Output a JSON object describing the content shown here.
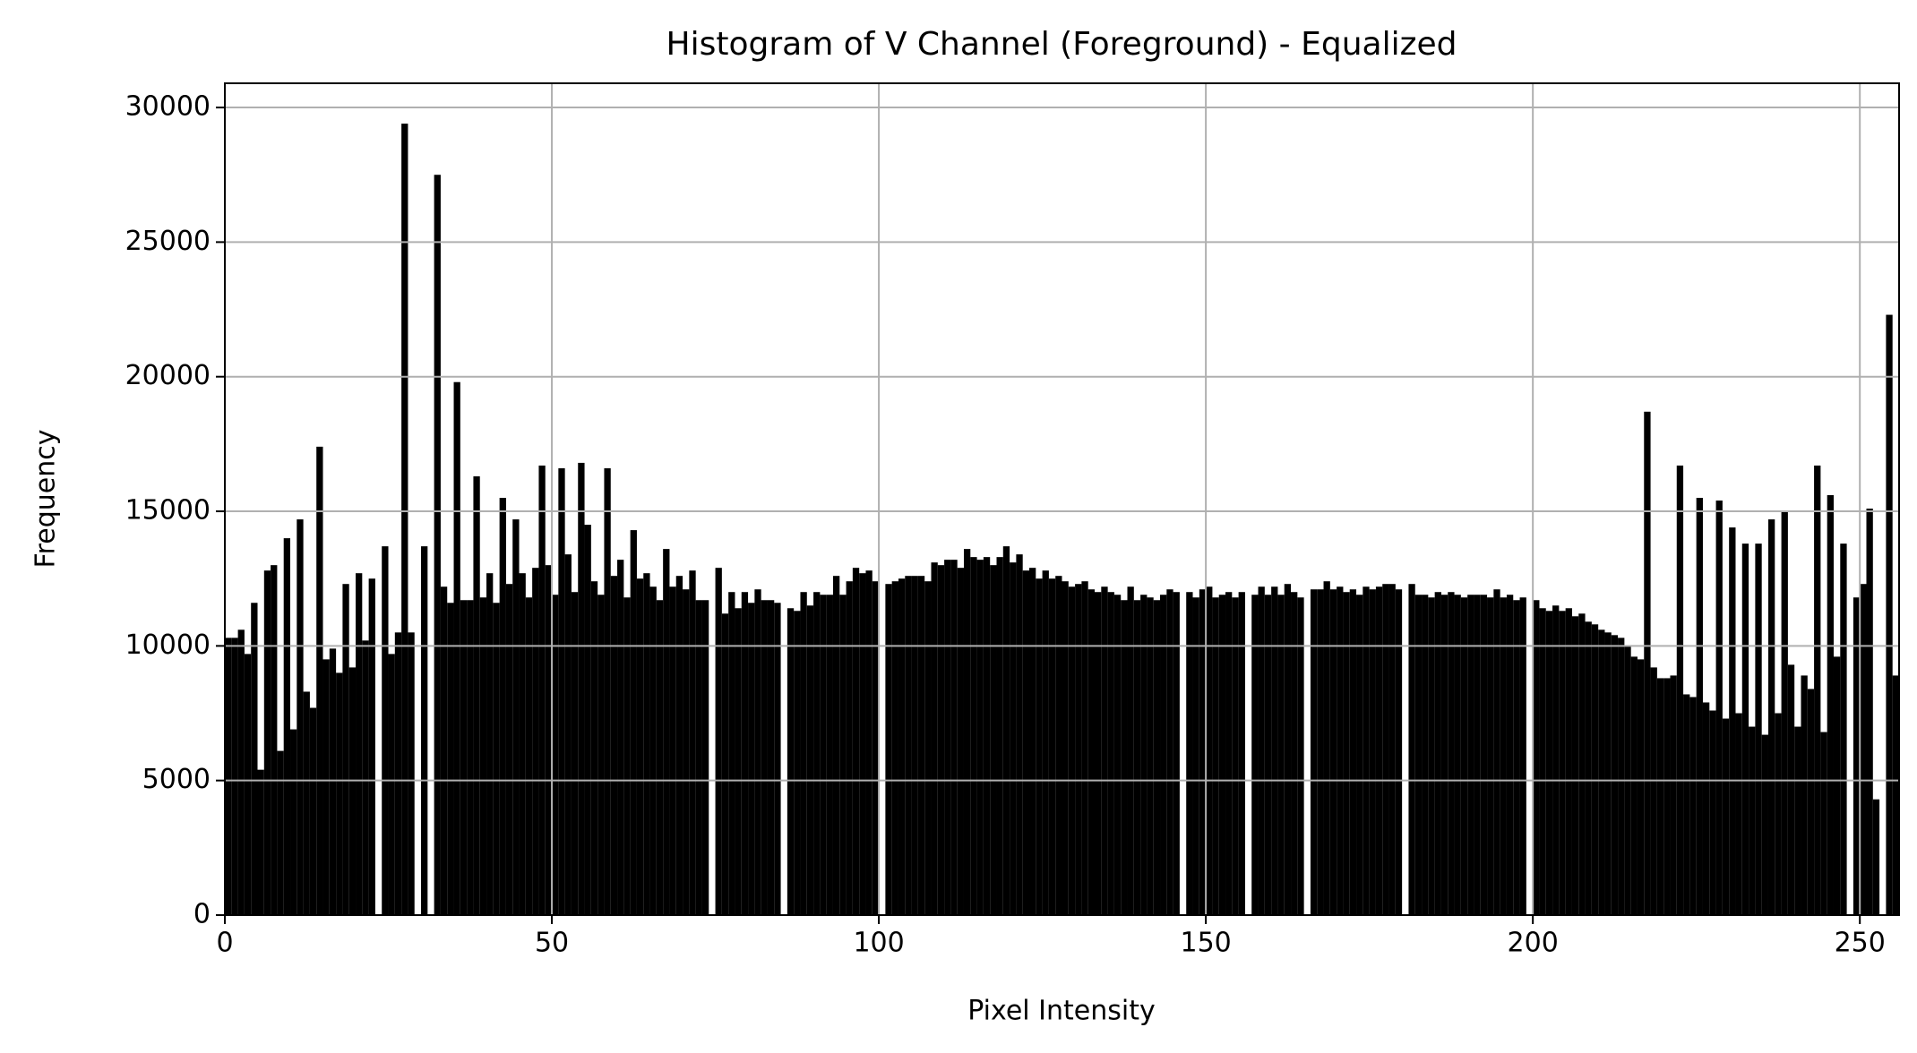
{
  "chart_data": {
    "type": "histogram",
    "title": "Histogram of V Channel (Foreground) - Equalized",
    "xlabel": "Pixel Intensity",
    "ylabel": "Frequency",
    "color": "#000000",
    "grid": true,
    "xlim": [
      0,
      256
    ],
    "ylim": [
      0,
      30900
    ],
    "xticks": [
      0,
      50,
      100,
      150,
      200,
      250
    ],
    "yticks": [
      0,
      5000,
      10000,
      15000,
      20000,
      25000,
      30000
    ],
    "bins": [
      0,
      1,
      2,
      3,
      4,
      5,
      6,
      7,
      8,
      9,
      10,
      11,
      12,
      13,
      14,
      15,
      16,
      17,
      18,
      19,
      20,
      21,
      22,
      23,
      24,
      25,
      26,
      27,
      28,
      29,
      30,
      31,
      32,
      33,
      34,
      35,
      36,
      37,
      38,
      39,
      40,
      41,
      42,
      43,
      44,
      45,
      46,
      47,
      48,
      49,
      50,
      51,
      52,
      53,
      54,
      55,
      56,
      57,
      58,
      59,
      60,
      61,
      62,
      63,
      64,
      65,
      66,
      67,
      68,
      69,
      70,
      71,
      72,
      73,
      74,
      75,
      76,
      77,
      78,
      79,
      80,
      81,
      82,
      83,
      84,
      85,
      86,
      87,
      88,
      89,
      90,
      91,
      92,
      93,
      94,
      95,
      96,
      97,
      98,
      99,
      100,
      101,
      102,
      103,
      104,
      105,
      106,
      107,
      108,
      109,
      110,
      111,
      112,
      113,
      114,
      115,
      116,
      117,
      118,
      119,
      120,
      121,
      122,
      123,
      124,
      125,
      126,
      127,
      128,
      129,
      130,
      131,
      132,
      133,
      134,
      135,
      136,
      137,
      138,
      139,
      140,
      141,
      142,
      143,
      144,
      145,
      146,
      147,
      148,
      149,
      150,
      151,
      152,
      153,
      154,
      155,
      156,
      157,
      158,
      159,
      160,
      161,
      162,
      163,
      164,
      165,
      166,
      167,
      168,
      169,
      170,
      171,
      172,
      173,
      174,
      175,
      176,
      177,
      178,
      179,
      180,
      181,
      182,
      183,
      184,
      185,
      186,
      187,
      188,
      189,
      190,
      191,
      192,
      193,
      194,
      195,
      196,
      197,
      198,
      199,
      200,
      201,
      202,
      203,
      204,
      205,
      206,
      207,
      208,
      209,
      210,
      211,
      212,
      213,
      214,
      215,
      216,
      217,
      218,
      219,
      220,
      221,
      222,
      223,
      224,
      225,
      226,
      227,
      228,
      229,
      230,
      231,
      232,
      233,
      234,
      235,
      236,
      237,
      238,
      239,
      240,
      241,
      242,
      243,
      244,
      245,
      246,
      247,
      248,
      249,
      250,
      251,
      252,
      253,
      254,
      255,
      256
    ],
    "counts": [
      10300,
      10300,
      10600,
      9700,
      11600,
      5400,
      12800,
      13000,
      6100,
      14000,
      6900,
      14700,
      8300,
      7700,
      17400,
      9500,
      9900,
      9000,
      12300,
      9200,
      12700,
      10200,
      12500,
      0,
      13700,
      9700,
      10500,
      29400,
      10500,
      0,
      13700,
      0,
      27500,
      12200,
      11600,
      19800,
      11700,
      11700,
      16300,
      11800,
      12700,
      11600,
      15500,
      12300,
      14700,
      12700,
      11800,
      12900,
      16700,
      13000,
      11900,
      16600,
      13400,
      12000,
      16800,
      14500,
      12400,
      11900,
      16600,
      12600,
      13200,
      11800,
      14300,
      12500,
      12700,
      12200,
      11700,
      13600,
      12200,
      12600,
      12100,
      12800,
      11700,
      11700,
      0,
      12900,
      11200,
      12000,
      11400,
      12000,
      11600,
      12100,
      11700,
      11700,
      11600,
      0,
      11400,
      11300,
      12000,
      11500,
      12000,
      11900,
      11900,
      12600,
      11900,
      12400,
      12900,
      12700,
      12800,
      12400,
      0,
      12300,
      12400,
      12500,
      12600,
      12600,
      12600,
      12400,
      13100,
      13000,
      13200,
      13200,
      12900,
      13600,
      13300,
      13200,
      13300,
      13000,
      13300,
      13700,
      13100,
      13400,
      12800,
      12900,
      12500,
      12800,
      12500,
      12600,
      12400,
      12200,
      12300,
      12400,
      12100,
      12000,
      12200,
      12000,
      11900,
      11700,
      12200,
      11700,
      11900,
      11800,
      11700,
      11900,
      12100,
      12000,
      0,
      12000,
      11800,
      12100,
      12200,
      11800,
      11900,
      12000,
      11800,
      12000,
      0,
      11900,
      12200,
      11900,
      12200,
      11900,
      12300,
      12000,
      11800,
      0,
      12100,
      12100,
      12400,
      12100,
      12200,
      12000,
      12100,
      11900,
      12200,
      12100,
      12200,
      12300,
      12300,
      12100,
      0,
      12300,
      11900,
      11900,
      11800,
      12000,
      11900,
      12000,
      11900,
      11800,
      11900,
      11900,
      11900,
      11800,
      12100,
      11800,
      11900,
      11700,
      11800,
      0,
      11700,
      11400,
      11300,
      11500,
      11300,
      11400,
      11100,
      11200,
      10900,
      10800,
      10600,
      10500,
      10400,
      10300,
      10000,
      9600,
      9500,
      18700,
      9200,
      8800,
      8800,
      8900,
      16700,
      8200,
      8100,
      15500,
      7900,
      7600,
      15400,
      7300,
      14400,
      7500,
      13800,
      7000,
      13800,
      6700,
      14700,
      7500,
      15000,
      9300,
      7000,
      8900,
      8400,
      16700,
      6800,
      15600,
      9600,
      13800,
      0,
      11800,
      12300,
      15100,
      4300,
      0,
      22300,
      8900
    ]
  }
}
